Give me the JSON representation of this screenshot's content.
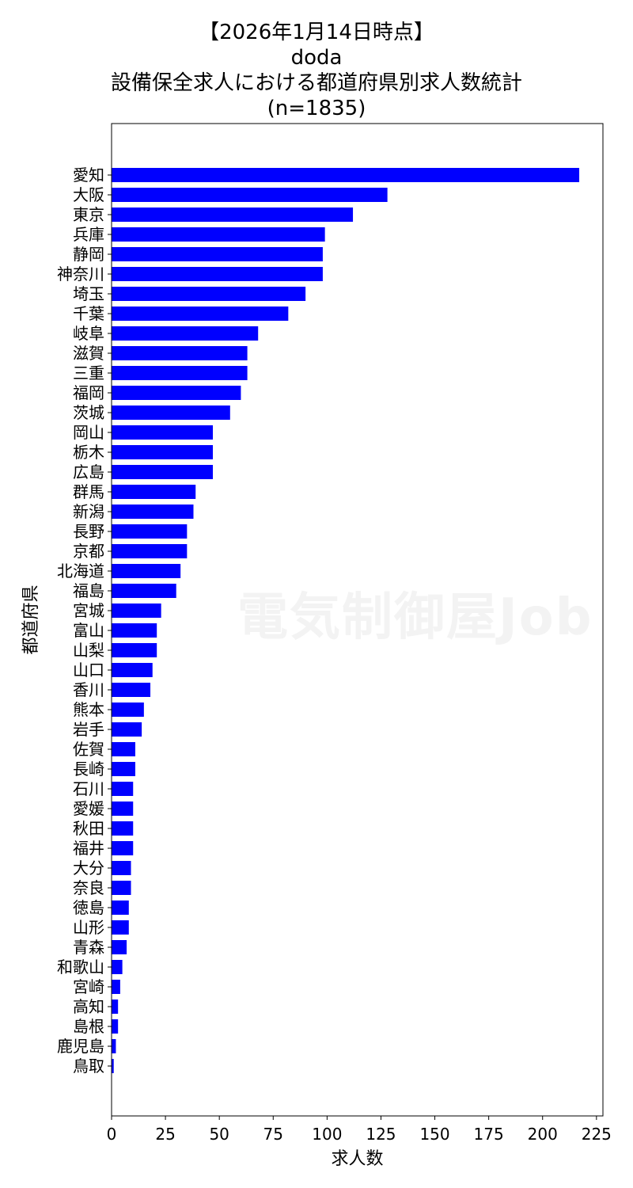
{
  "title_lines": [
    "【2026年1月14日時点】",
    "doda",
    "設備保全求人における都道府県別求人数統計",
    "(n=1835)"
  ],
  "watermark": "電気制御屋Job",
  "chart_data": {
    "type": "bar",
    "orientation": "horizontal",
    "xlabel": "求人数",
    "ylabel": "都道府県",
    "xlim": [
      0,
      228
    ],
    "xticks": [
      0,
      25,
      50,
      75,
      100,
      125,
      150,
      175,
      200,
      225
    ],
    "grid": false,
    "bar_color": "#0000ff",
    "categories": [
      "愛知",
      "大阪",
      "東京",
      "兵庫",
      "静岡",
      "神奈川",
      "埼玉",
      "千葉",
      "岐阜",
      "滋賀",
      "三重",
      "福岡",
      "茨城",
      "岡山",
      "栃木",
      "広島",
      "群馬",
      "新潟",
      "長野",
      "京都",
      "北海道",
      "福島",
      "宮城",
      "富山",
      "山梨",
      "山口",
      "香川",
      "熊本",
      "岩手",
      "佐賀",
      "長崎",
      "石川",
      "愛媛",
      "秋田",
      "福井",
      "大分",
      "奈良",
      "徳島",
      "山形",
      "青森",
      "和歌山",
      "宮崎",
      "高知",
      "島根",
      "鹿児島",
      "鳥取"
    ],
    "values": [
      217,
      128,
      112,
      99,
      98,
      98,
      90,
      82,
      68,
      63,
      63,
      60,
      55,
      47,
      47,
      47,
      39,
      38,
      35,
      35,
      32,
      30,
      23,
      21,
      21,
      19,
      18,
      15,
      14,
      11,
      11,
      10,
      10,
      10,
      10,
      9,
      9,
      8,
      8,
      7,
      5,
      4,
      3,
      3,
      2,
      1
    ]
  }
}
